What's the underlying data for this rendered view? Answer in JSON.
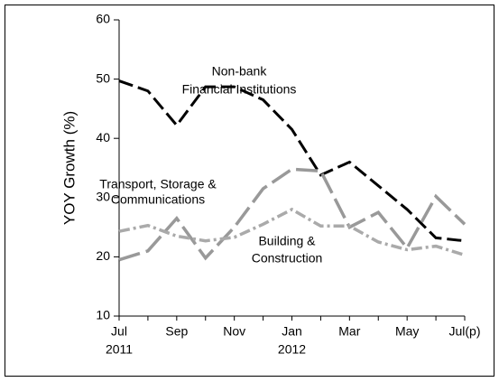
{
  "chart_data": {
    "type": "line",
    "ylabel": "YOY Growth (%)",
    "categories": [
      "Jul",
      null,
      "Sep",
      null,
      "Nov",
      null,
      "Jan",
      null,
      "Mar",
      null,
      "May",
      null,
      "Jul(p)"
    ],
    "year_labels": [
      "2011",
      null,
      null,
      null,
      null,
      null,
      "2012",
      null,
      null,
      null,
      null,
      null,
      null
    ],
    "ylim": [
      10,
      60
    ],
    "yticks": [
      10,
      20,
      30,
      40,
      50,
      60
    ],
    "series": [
      {
        "name": "Non-bank Financial Institutions",
        "color": "#000000",
        "dash": "16,6",
        "values": [
          49.7,
          48,
          42.2,
          48.7,
          48.7,
          46.5,
          41.5,
          33.8,
          36,
          32,
          28,
          23.2,
          22.7
        ]
      },
      {
        "name": "Transport, Storage & Communications",
        "color": "#999999",
        "dash": "24,7",
        "values": [
          19.5,
          21,
          26.5,
          19.8,
          25,
          31.5,
          34.8,
          34.5,
          25,
          27.5,
          21.5,
          30.2,
          25.5
        ]
      },
      {
        "name": "Building & Construction",
        "color": "#aaaaaa",
        "dash": "12,4,3,4",
        "values": [
          24.3,
          25.3,
          23.5,
          22.7,
          23.3,
          25.5,
          28,
          25.2,
          25.2,
          22.5,
          21.2,
          21.8,
          20.3
        ]
      }
    ],
    "annotations": [
      {
        "lines": [
          "Non-bank",
          "Financial Institutions"
        ]
      },
      {
        "lines": [
          "Transport, Storage &",
          "Communications"
        ]
      },
      {
        "lines": [
          "Building &",
          "Construction"
        ]
      }
    ]
  }
}
